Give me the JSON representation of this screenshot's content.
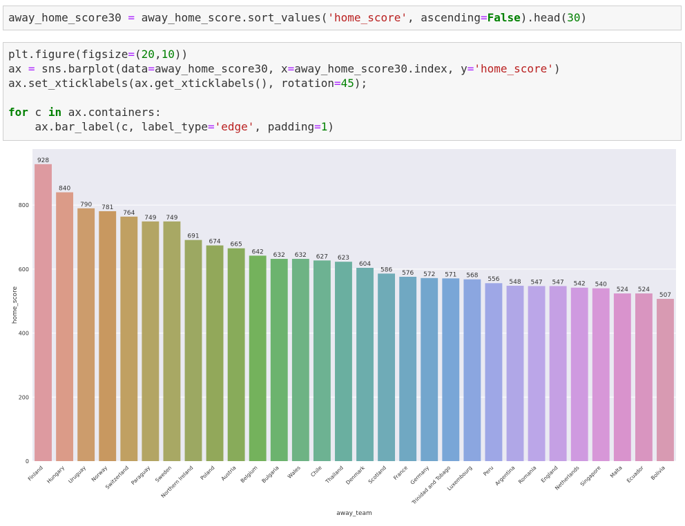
{
  "code_cells": [
    {
      "lines": [
        [
          {
            "t": "away_home_score30 ",
            "c": ""
          },
          {
            "t": "=",
            "c": "op"
          },
          {
            "t": " away_home_score.sort_values(",
            "c": ""
          },
          {
            "t": "'home_score'",
            "c": "str"
          },
          {
            "t": ", ascending",
            "c": ""
          },
          {
            "t": "=",
            "c": "op"
          },
          {
            "t": "False",
            "c": "kw"
          },
          {
            "t": ").head(",
            "c": ""
          },
          {
            "t": "30",
            "c": "num"
          },
          {
            "t": ")",
            "c": ""
          }
        ]
      ]
    },
    {
      "lines": [
        [
          {
            "t": "plt.figure(figsize",
            "c": ""
          },
          {
            "t": "=",
            "c": "op"
          },
          {
            "t": "(",
            "c": ""
          },
          {
            "t": "20",
            "c": "num"
          },
          {
            "t": ",",
            "c": ""
          },
          {
            "t": "10",
            "c": "num"
          },
          {
            "t": "))",
            "c": ""
          }
        ],
        [
          {
            "t": "ax ",
            "c": ""
          },
          {
            "t": "=",
            "c": "op"
          },
          {
            "t": " sns.barplot(data",
            "c": ""
          },
          {
            "t": "=",
            "c": "op"
          },
          {
            "t": "away_home_score30, x",
            "c": ""
          },
          {
            "t": "=",
            "c": "op"
          },
          {
            "t": "away_home_score30.index, y",
            "c": ""
          },
          {
            "t": "=",
            "c": "op"
          },
          {
            "t": "'home_score'",
            "c": "str"
          },
          {
            "t": ")",
            "c": ""
          }
        ],
        [
          {
            "t": "ax.set_xticklabels(ax.get_xticklabels(), rotation",
            "c": ""
          },
          {
            "t": "=",
            "c": "op"
          },
          {
            "t": "45",
            "c": "num"
          },
          {
            "t": ");",
            "c": ""
          }
        ],
        [],
        [
          {
            "t": "for",
            "c": "kw"
          },
          {
            "t": " c ",
            "c": ""
          },
          {
            "t": "in",
            "c": "kw"
          },
          {
            "t": " ax.containers:",
            "c": ""
          }
        ],
        [
          {
            "t": "    ax.bar_label(c, label_type",
            "c": ""
          },
          {
            "t": "=",
            "c": "op"
          },
          {
            "t": "'edge'",
            "c": "str"
          },
          {
            "t": ", padding",
            "c": ""
          },
          {
            "t": "=",
            "c": "op"
          },
          {
            "t": "1",
            "c": "num"
          },
          {
            "t": ")",
            "c": ""
          }
        ]
      ]
    }
  ],
  "chart_data": {
    "type": "bar",
    "xlabel": "away_team",
    "ylabel": "home_score",
    "ylim": [
      0,
      975
    ],
    "yticks": [
      0,
      200,
      400,
      600,
      800
    ],
    "grid": true,
    "background": "#eaeaf2",
    "tick_rotation": 45,
    "categories": [
      "Finland",
      "Hungary",
      "Uruguay",
      "Norway",
      "Switzerland",
      "Paraguay",
      "Sweden",
      "Northern Ireland",
      "Poland",
      "Austria",
      "Belgium",
      "Bulgaria",
      "Wales",
      "Chile",
      "Thailand",
      "Denmark",
      "Scotland",
      "France",
      "Germany",
      "Trinidad and Tobago",
      "Luxembourg",
      "Peru",
      "Argentina",
      "Romania",
      "England",
      "Netherlands",
      "Singapore",
      "Malta",
      "Ecuador",
      "Bolivia"
    ],
    "values": [
      928,
      840,
      790,
      781,
      764,
      749,
      749,
      691,
      674,
      665,
      642,
      632,
      632,
      627,
      623,
      604,
      586,
      576,
      572,
      571,
      568,
      556,
      548,
      547,
      547,
      542,
      540,
      524,
      524,
      507
    ],
    "colors": [
      "#dd9aa0",
      "#db9b88",
      "#cc9c6c",
      "#c89860",
      "#c0a062",
      "#b3a564",
      "#a8a864",
      "#9ca862",
      "#92a85a",
      "#88ab5a",
      "#74b25c",
      "#6cb36e",
      "#6eb384",
      "#6db292",
      "#6aafa0",
      "#6cadac",
      "#6fabb7",
      "#70a8c2",
      "#73a6cd",
      "#79a6d7",
      "#8ba6e0",
      "#9ea7e6",
      "#b0a7e7",
      "#bba6e8",
      "#c5a0e4",
      "#cf9ae0",
      "#d797d8",
      "#d993cd",
      "#d995c0",
      "#d89ab2"
    ]
  }
}
